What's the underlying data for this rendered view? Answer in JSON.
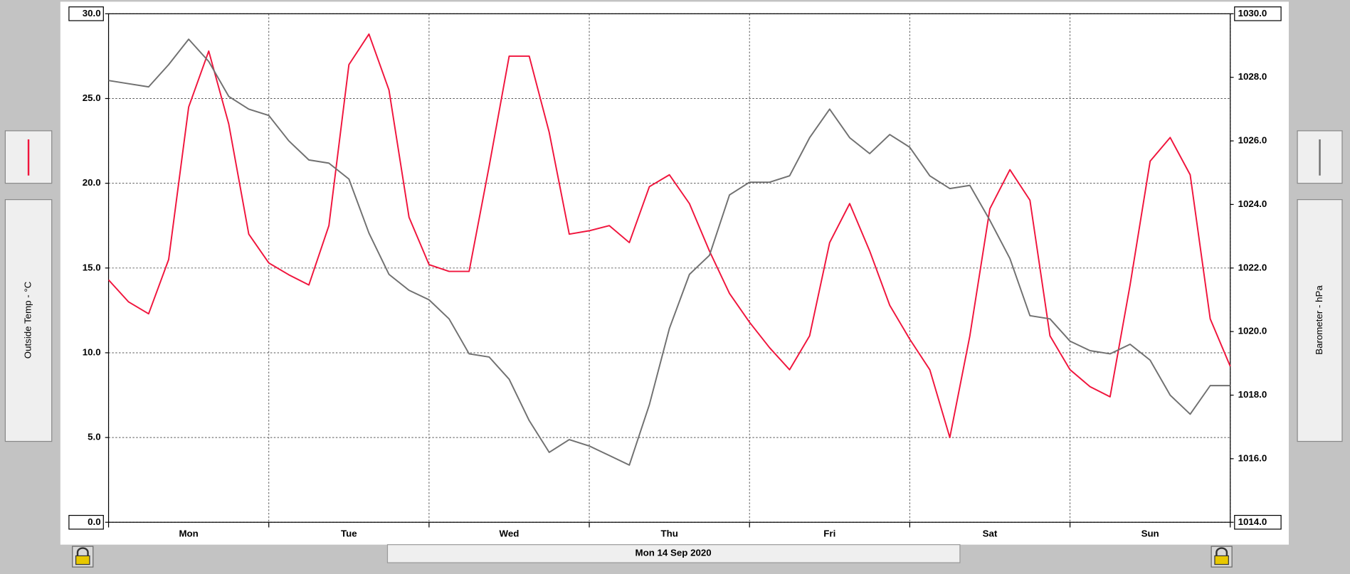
{
  "chart_data": {
    "type": "line",
    "date_label": "Mon 14 Sep 2020",
    "x": [
      0,
      0.125,
      0.25,
      0.375,
      0.5,
      0.625,
      0.75,
      0.875,
      1,
      1.125,
      1.25,
      1.375,
      1.5,
      1.625,
      1.75,
      1.875,
      2,
      2.125,
      2.25,
      2.375,
      2.5,
      2.625,
      2.75,
      2.875,
      3,
      3.125,
      3.25,
      3.375,
      3.5,
      3.625,
      3.75,
      3.875,
      4,
      4.125,
      4.25,
      4.375,
      4.5,
      4.625,
      4.75,
      4.875,
      5,
      5.125,
      5.25,
      5.375,
      5.5,
      5.625,
      5.75,
      5.875,
      6,
      6.125,
      6.25,
      6.375,
      6.5,
      6.625,
      6.75,
      6.875,
      7
    ],
    "xlim": [
      0,
      7
    ],
    "xgrid": [
      0,
      1,
      2,
      3,
      4,
      5,
      6,
      7
    ],
    "xticks": [
      {
        "value": 0.5,
        "label": "Mon"
      },
      {
        "value": 1.5,
        "label": "Tue"
      },
      {
        "value": 2.5,
        "label": "Wed"
      },
      {
        "value": 3.5,
        "label": "Thu"
      },
      {
        "value": 4.5,
        "label": "Fri"
      },
      {
        "value": 5.5,
        "label": "Sat"
      },
      {
        "value": 6.5,
        "label": "Sun"
      }
    ],
    "ylim": [
      0,
      30
    ],
    "yticks": [
      {
        "value": 0,
        "label": "0.0"
      },
      {
        "value": 5,
        "label": "5.0"
      },
      {
        "value": 10,
        "label": "10.0"
      },
      {
        "value": 15,
        "label": "15.0"
      },
      {
        "value": 20,
        "label": "20.0"
      },
      {
        "value": 25,
        "label": "25.0"
      },
      {
        "value": 30,
        "label": "30.0"
      }
    ],
    "y2lim": [
      1014,
      1030
    ],
    "y2ticks": [
      {
        "value": 1014,
        "label": "1014.0"
      },
      {
        "value": 1016,
        "label": "1016.0"
      },
      {
        "value": 1018,
        "label": "1018.0"
      },
      {
        "value": 1020,
        "label": "1020.0"
      },
      {
        "value": 1022,
        "label": "1022.0"
      },
      {
        "value": 1024,
        "label": "1024.0"
      },
      {
        "value": 1026,
        "label": "1026.0"
      },
      {
        "value": 1028,
        "label": "1028.0"
      },
      {
        "value": 1030,
        "label": "1030.0"
      }
    ],
    "grid": true,
    "series": [
      {
        "name": "Outside Temp - °C",
        "color": "#f0143c",
        "axis": "y",
        "values": [
          14.3,
          13.0,
          12.3,
          15.5,
          24.5,
          27.8,
          23.5,
          17.0,
          15.3,
          14.6,
          14.0,
          17.5,
          27.0,
          28.8,
          25.5,
          18.0,
          15.2,
          14.8,
          14.8,
          21.0,
          27.5,
          27.5,
          23.0,
          17.0,
          17.2,
          17.5,
          16.5,
          19.8,
          20.5,
          18.8,
          16.0,
          13.5,
          11.8,
          10.3,
          9.0,
          11.0,
          16.5,
          18.8,
          16.0,
          12.8,
          10.8,
          9.0,
          5.0,
          11.0,
          18.5,
          20.8,
          19.0,
          11.0,
          9.0,
          8.0,
          7.4,
          14.0,
          21.3,
          22.7,
          20.5,
          12.0,
          9.2
        ]
      },
      {
        "name": "Barometer - hPa",
        "color": "#707070",
        "axis": "y2",
        "values": [
          1027.9,
          1027.8,
          1027.7,
          1028.4,
          1029.2,
          1028.5,
          1027.4,
          1027.0,
          1026.8,
          1026.0,
          1025.4,
          1025.3,
          1024.8,
          1023.1,
          1021.8,
          1021.3,
          1021.0,
          1020.4,
          1019.3,
          1019.2,
          1018.5,
          1017.2,
          1016.2,
          1016.6,
          1016.4,
          1016.1,
          1015.8,
          1017.7,
          1020.1,
          1021.8,
          1022.4,
          1024.3,
          1024.7,
          1024.7,
          1024.9,
          1026.1,
          1027.0,
          1026.1,
          1025.6,
          1026.2,
          1025.8,
          1024.9,
          1024.5,
          1024.6,
          1023.5,
          1022.3,
          1020.5,
          1020.4,
          1019.7,
          1019.4,
          1019.3,
          1019.6,
          1019.1,
          1018.0,
          1017.4,
          1018.3,
          1018.3
        ]
      }
    ]
  }
}
